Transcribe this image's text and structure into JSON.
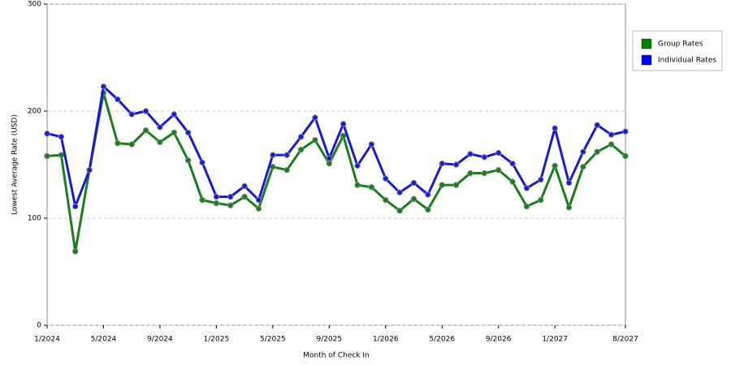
{
  "chart_data": {
    "type": "line",
    "x_label": "Month of Check In",
    "y_label": "Lowest Average Rate (USD)",
    "categories": [
      "1/2024",
      null,
      null,
      null,
      "5/2024",
      null,
      null,
      null,
      "9/2024",
      null,
      null,
      null,
      "1/2025",
      null,
      null,
      null,
      "5/2025",
      null,
      null,
      null,
      "9/2025",
      null,
      null,
      null,
      "1/2026",
      null,
      null,
      null,
      "5/2026",
      null,
      null,
      null,
      "9/2026",
      null,
      null,
      null,
      "1/2027",
      null,
      null,
      null,
      null,
      "8/2027"
    ],
    "series": [
      {
        "name": "Group Rates",
        "color": "#1a7f1a",
        "legend_color": "#008000",
        "values": [
          158,
          159,
          69,
          145,
          217,
          170,
          169,
          182,
          171,
          180,
          154,
          117,
          114,
          112,
          120,
          109,
          148,
          145,
          164,
          173,
          151,
          177,
          131,
          129,
          117,
          107,
          118,
          108,
          131,
          131,
          142,
          142,
          145,
          134,
          111,
          117,
          149,
          110,
          148,
          162,
          169,
          158
        ]
      },
      {
        "name": "Individual Rates",
        "color": "#1a1ad6",
        "legend_color": "#0000ff",
        "values": [
          179,
          176,
          111,
          145,
          223,
          211,
          197,
          200,
          185,
          197,
          180,
          152,
          120,
          120,
          130,
          117,
          159,
          159,
          176,
          194,
          156,
          188,
          149,
          169,
          137,
          124,
          133,
          122,
          151,
          150,
          160,
          157,
          161,
          151,
          128,
          136,
          184,
          133,
          162,
          187,
          178,
          181
        ]
      }
    ],
    "ylim": [
      0,
      300
    ],
    "yticks": [
      0,
      100,
      200,
      300
    ],
    "grid": true
  }
}
